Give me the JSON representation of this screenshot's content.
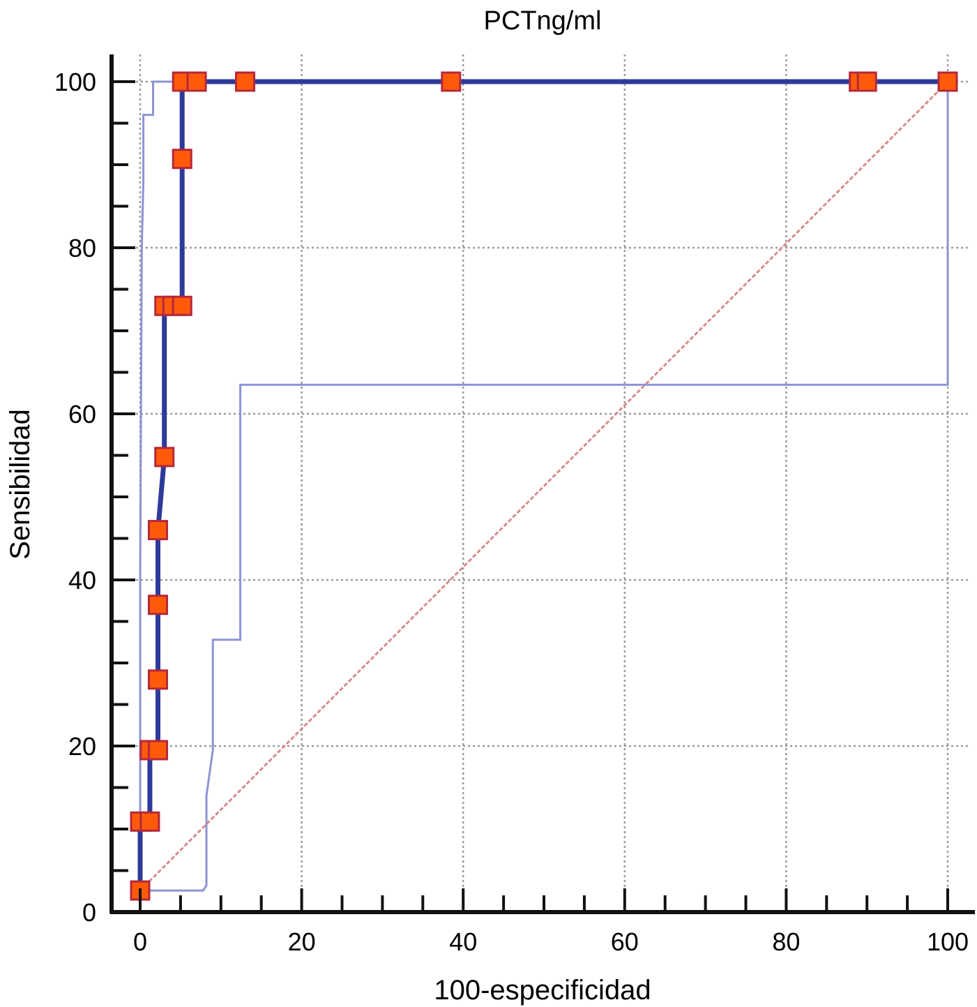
{
  "chart_data": {
    "type": "line",
    "title": "PCTng/ml",
    "xlabel": "100-especificidad",
    "ylabel": "Sensibilidad",
    "xlim": [
      0,
      100
    ],
    "ylim": [
      0,
      100
    ],
    "x_ticks": [
      0,
      20,
      40,
      60,
      80,
      100
    ],
    "y_ticks": [
      0,
      20,
      40,
      60,
      80,
      100
    ],
    "grid": true,
    "series": [
      {
        "role": "roc_curve",
        "color": "#2e3a9a",
        "points": [
          [
            0,
            2.6
          ],
          [
            0,
            10.9
          ],
          [
            1.2,
            10.9
          ],
          [
            1.2,
            19.5
          ],
          [
            2.2,
            19.5
          ],
          [
            2.2,
            28
          ],
          [
            2.2,
            37
          ],
          [
            2.2,
            46
          ],
          [
            3,
            54.8
          ],
          [
            3,
            73
          ],
          [
            5.2,
            73
          ],
          [
            5.2,
            90.7
          ],
          [
            5.2,
            100
          ],
          [
            7,
            100
          ],
          [
            13,
            100
          ],
          [
            38.5,
            100
          ],
          [
            89,
            100
          ],
          [
            90,
            100
          ],
          [
            100,
            100
          ]
        ],
        "markers": [
          [
            0,
            2.6
          ],
          [
            0,
            10.9
          ],
          [
            1.2,
            10.9
          ],
          [
            1.2,
            19.5
          ],
          [
            2.2,
            19.5
          ],
          [
            2.2,
            28
          ],
          [
            2.2,
            37
          ],
          [
            2.2,
            46
          ],
          [
            3,
            54.8
          ],
          [
            3,
            73
          ],
          [
            4,
            73
          ],
          [
            5.2,
            73
          ],
          [
            5.2,
            90.7
          ],
          [
            5.2,
            100
          ],
          [
            7,
            100
          ],
          [
            13,
            100
          ],
          [
            38.5,
            100
          ],
          [
            89,
            100
          ],
          [
            90,
            100
          ],
          [
            100,
            100
          ]
        ]
      },
      {
        "role": "confidence_bound_upper",
        "color": "#8c94d6",
        "points": [
          [
            0,
            0
          ],
          [
            0,
            40
          ],
          [
            0.2,
            80
          ],
          [
            0.4,
            88
          ],
          [
            0.4,
            96
          ],
          [
            1.6,
            96
          ],
          [
            1.6,
            100
          ],
          [
            100,
            100
          ]
        ]
      },
      {
        "role": "confidence_bound_lower",
        "color": "#8c94d6",
        "points": [
          [
            0,
            0
          ],
          [
            0,
            2.6
          ],
          [
            7.8,
            2.6
          ],
          [
            8.2,
            3.2
          ],
          [
            8.2,
            14
          ],
          [
            9,
            19.5
          ],
          [
            9,
            32.8
          ],
          [
            12.4,
            32.8
          ],
          [
            12.4,
            63.5
          ],
          [
            100,
            63.5
          ],
          [
            100,
            100
          ]
        ]
      },
      {
        "role": "reference_diagonal",
        "color": "#d98a8a",
        "points": [
          [
            0,
            2.6
          ],
          [
            100,
            100
          ]
        ]
      }
    ]
  }
}
